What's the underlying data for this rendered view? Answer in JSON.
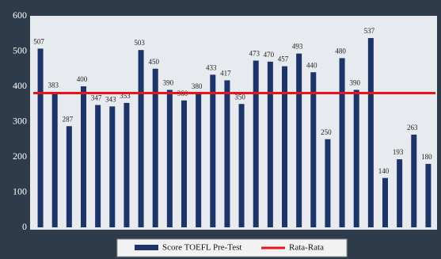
{
  "chart_data": {
    "type": "bar",
    "categories": [
      null,
      null,
      null,
      null,
      null,
      null,
      null,
      null,
      null,
      null,
      null,
      null,
      null,
      null,
      null,
      null,
      null,
      null,
      null,
      null,
      null,
      null,
      null,
      null,
      null,
      null,
      null,
      null
    ],
    "series": [
      {
        "name": "Score TOEFL Pre-Test",
        "color": "#1c3468",
        "values": [
          507,
          383,
          287,
          400,
          347,
          343,
          353,
          503,
          450,
          390,
          360,
          380,
          433,
          417,
          350,
          473,
          470,
          457,
          493,
          440,
          250,
          480,
          390,
          537,
          140,
          193,
          263,
          180
        ]
      }
    ],
    "reference_line": {
      "name": "Rata-Rata",
      "value": 381,
      "color": "#e8141b"
    },
    "ylim": [
      0,
      600
    ],
    "yticks": [
      0,
      100,
      200,
      300,
      400,
      500,
      600
    ]
  }
}
